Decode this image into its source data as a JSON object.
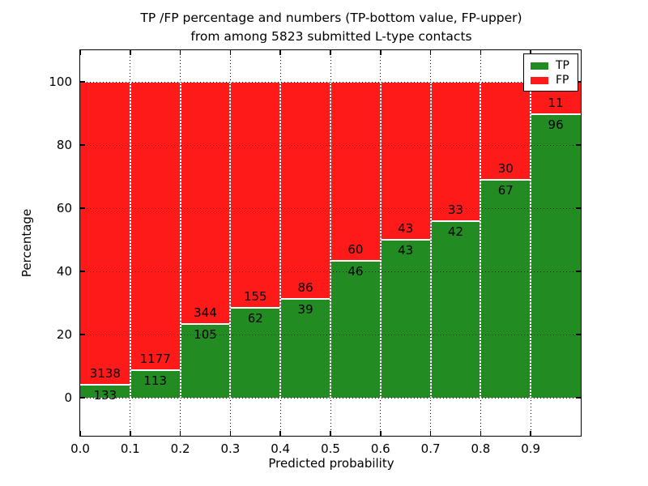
{
  "figure": {
    "title_line1": "TP /FP percentage and numbers (TP-bottom value, FP-upper)",
    "title_line2": "from among 5823 submitted L-type contacts",
    "xlabel": "Predicted probability",
    "ylabel": "Percentage"
  },
  "legend": {
    "position": "upper right",
    "items": [
      {
        "label": "TP",
        "color": "#228B22"
      },
      {
        "label": "FP",
        "color": "#ff1a1a"
      }
    ]
  },
  "chart_data": {
    "type": "bar",
    "stacked": true,
    "title": "TP /FP percentage and numbers (TP-bottom value, FP-upper) from among 5823 submitted L-type contacts",
    "xlabel": "Predicted probability",
    "ylabel": "Percentage",
    "total_contacts": 5823,
    "xlim": [
      0.0,
      1.0
    ],
    "ylim": [
      -12,
      110
    ],
    "grid": "dotted",
    "legend_position": "upper right",
    "bar_edge_color": "#ffffff",
    "colors": {
      "tp": "#228B22",
      "fp": "#ff1a1a"
    },
    "xticks": [
      "0.0",
      "0.1",
      "0.2",
      "0.3",
      "0.4",
      "0.5",
      "0.6",
      "0.7",
      "0.8",
      "0.9"
    ],
    "yticks": [
      0,
      20,
      40,
      60,
      80,
      100
    ],
    "categories": [
      "0.0-0.1",
      "0.1-0.2",
      "0.2-0.3",
      "0.3-0.4",
      "0.4-0.5",
      "0.5-0.6",
      "0.6-0.7",
      "0.7-0.8",
      "0.8-0.9",
      "0.9-1.0"
    ],
    "series": [
      {
        "name": "TP",
        "color": "#228B22",
        "values": [
          133,
          113,
          105,
          62,
          39,
          46,
          43,
          42,
          67,
          96
        ]
      },
      {
        "name": "FP",
        "color": "#ff1a1a",
        "values": [
          3138,
          1177,
          344,
          155,
          86,
          60,
          43,
          33,
          30,
          11
        ]
      }
    ],
    "bins": [
      {
        "range": [
          0.0,
          0.1
        ],
        "tp": 133,
        "fp": 3138,
        "tp_pct": 4.07
      },
      {
        "range": [
          0.1,
          0.2
        ],
        "tp": 113,
        "fp": 1177,
        "tp_pct": 8.76
      },
      {
        "range": [
          0.2,
          0.3
        ],
        "tp": 105,
        "fp": 344,
        "tp_pct": 23.39
      },
      {
        "range": [
          0.3,
          0.4
        ],
        "tp": 62,
        "fp": 155,
        "tp_pct": 28.57
      },
      {
        "range": [
          0.4,
          0.5
        ],
        "tp": 39,
        "fp": 86,
        "tp_pct": 31.2
      },
      {
        "range": [
          0.5,
          0.6
        ],
        "tp": 46,
        "fp": 60,
        "tp_pct": 43.4
      },
      {
        "range": [
          0.6,
          0.7
        ],
        "tp": 43,
        "fp": 43,
        "tp_pct": 50.0
      },
      {
        "range": [
          0.7,
          0.8
        ],
        "tp": 42,
        "fp": 33,
        "tp_pct": 56.0
      },
      {
        "range": [
          0.8,
          0.9
        ],
        "tp": 67,
        "fp": 30,
        "tp_pct": 69.07
      },
      {
        "range": [
          0.9,
          1.0
        ],
        "tp": 96,
        "fp": 11,
        "tp_pct": 89.72
      }
    ]
  }
}
